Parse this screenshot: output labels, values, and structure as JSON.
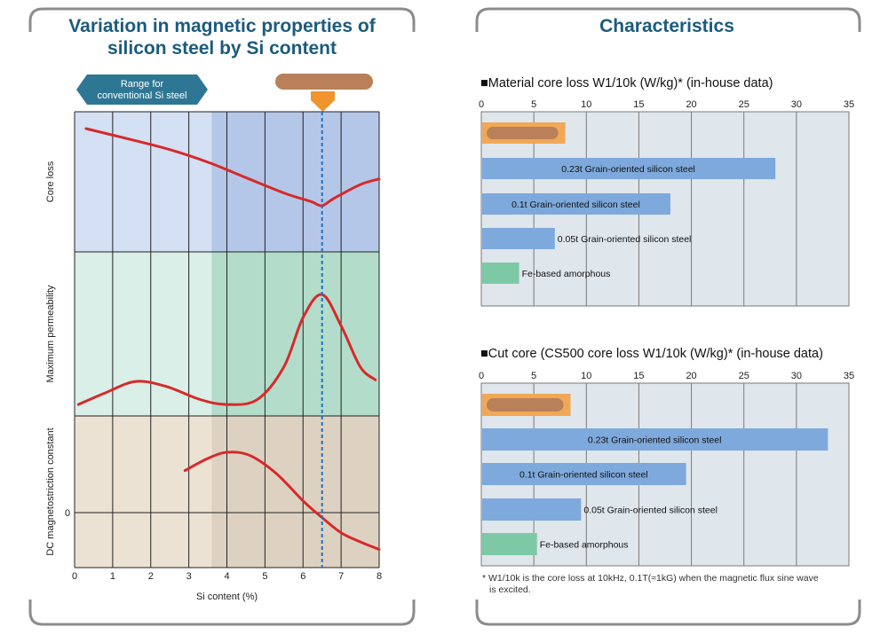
{
  "colors": {
    "frame": "#8c8c8c",
    "title": "#1c5b7c",
    "curve": "#d62a2a",
    "dashed": "#1a73c9",
    "blue_light": "#d4e0f4",
    "blue_dark": "#b5c7e8",
    "green_light": "#d9efe7",
    "green_dark": "#b3dcca",
    "beige_light": "#ece2d3",
    "beige_dark": "#ddd2c1",
    "arrow": "#2e7794",
    "marker": "#f0952e",
    "marker_blob": "#b98059",
    "bar": "#7ea9dc",
    "bar_green": "#7dc9a6",
    "bar_highlight": "#f0a857",
    "grid": "#7a7a7a",
    "panel_bg": "#dfe6ec"
  },
  "left_panel": {
    "title_line1": "Variation in magnetic properties of",
    "title_line2": "silicon steel by Si content",
    "range_label_line1": "Range for",
    "range_label_line2": "conventional Si steel"
  },
  "right_panel": {
    "title": "Characteristics",
    "footnote_line1": "* W1/10k is the core loss at 10kHz, 0.1T(≈1kG) when the magnetic flux sine wave",
    "footnote_line2": "is excited."
  },
  "chart_data": [
    {
      "type": "line",
      "title": "Variation in magnetic properties of silicon steel by Si content",
      "xlabel": "Si content (%)",
      "xlim": [
        0,
        8
      ],
      "x_ticks": [
        "0",
        "1",
        "2",
        "3",
        "4",
        "5",
        "6",
        "7",
        "8"
      ],
      "conventional_range": [
        0,
        3.6
      ],
      "marker_x": 6.5,
      "subplots": [
        {
          "ylabel": "Core loss",
          "series": [
            {
              "name": "Core loss",
              "x": [
                0.3,
                1.5,
                2.5,
                3.5,
                4.5,
                5.5,
                6.2,
                6.5,
                6.8,
                7.5,
                8.0
              ],
              "y": [
                0.88,
                0.8,
                0.73,
                0.64,
                0.53,
                0.42,
                0.36,
                0.33,
                0.38,
                0.48,
                0.52
              ]
            }
          ]
        },
        {
          "ylabel": "Maximum permeability",
          "series": [
            {
              "name": "Maximum permeability",
              "x": [
                0.1,
                0.8,
                1.6,
                2.4,
                3.3,
                4.0,
                4.8,
                5.5,
                6.0,
                6.5,
                7.0,
                7.5,
                7.9
              ],
              "y": [
                0.07,
                0.14,
                0.21,
                0.18,
                0.1,
                0.07,
                0.1,
                0.3,
                0.6,
                0.74,
                0.55,
                0.3,
                0.22
              ]
            }
          ]
        },
        {
          "ylabel": "DC magnetostriction constant",
          "y_ticks": [
            "0"
          ],
          "series": [
            {
              "name": "DC magnetostriction constant",
              "x": [
                2.9,
                3.5,
                4.0,
                4.6,
                5.3,
                6.0,
                6.5,
                7.0,
                7.5,
                8.0
              ],
              "y": [
                0.64,
                0.72,
                0.76,
                0.74,
                0.62,
                0.44,
                0.33,
                0.23,
                0.17,
                0.12
              ]
            }
          ]
        }
      ]
    },
    {
      "type": "bar",
      "orientation": "horizontal",
      "title": "■Material core loss W1/10k (W/kg)* (in-house data)",
      "xlim": [
        0,
        35
      ],
      "x_ticks": [
        "0",
        "5",
        "10",
        "15",
        "20",
        "25",
        "30",
        "35"
      ],
      "categories": [
        "(redacted)",
        "0.23t Grain-oriented silicon steel",
        "0.1t Grain-oriented silicon steel",
        "0.05t Grain-oriented silicon steel",
        "Fe-based amorphous"
      ],
      "labels": [
        "",
        "0.23t Grain-oriented silicon steel",
        "0.1t Grain-oriented silicon steel",
        "0.05t Grain-oriented silicon steel",
        "Fe-based amorphous"
      ],
      "values": [
        8,
        28,
        18,
        7,
        3.6
      ]
    },
    {
      "type": "bar",
      "orientation": "horizontal",
      "title": "■Cut core (CS500 core loss W1/10k (W/kg)* (in-house data)",
      "xlim": [
        0,
        35
      ],
      "x_ticks": [
        "0",
        "5",
        "10",
        "15",
        "20",
        "25",
        "30",
        "35"
      ],
      "categories": [
        "(redacted)",
        "0.23t Grain-oriented silicon steel",
        "0.1t Grain-oriented silicon steel",
        "0.05t Grain-oriented silicon steel",
        "Fe-based amorphous"
      ],
      "labels": [
        "",
        "0.23t Grain-oriented silicon steel",
        "0.1t Grain-oriented silicon steel",
        "0.05t Grain-oriented silicon steel",
        "Fe-based amorphous"
      ],
      "values": [
        8.5,
        33,
        19.5,
        9.5,
        5.3
      ]
    }
  ]
}
